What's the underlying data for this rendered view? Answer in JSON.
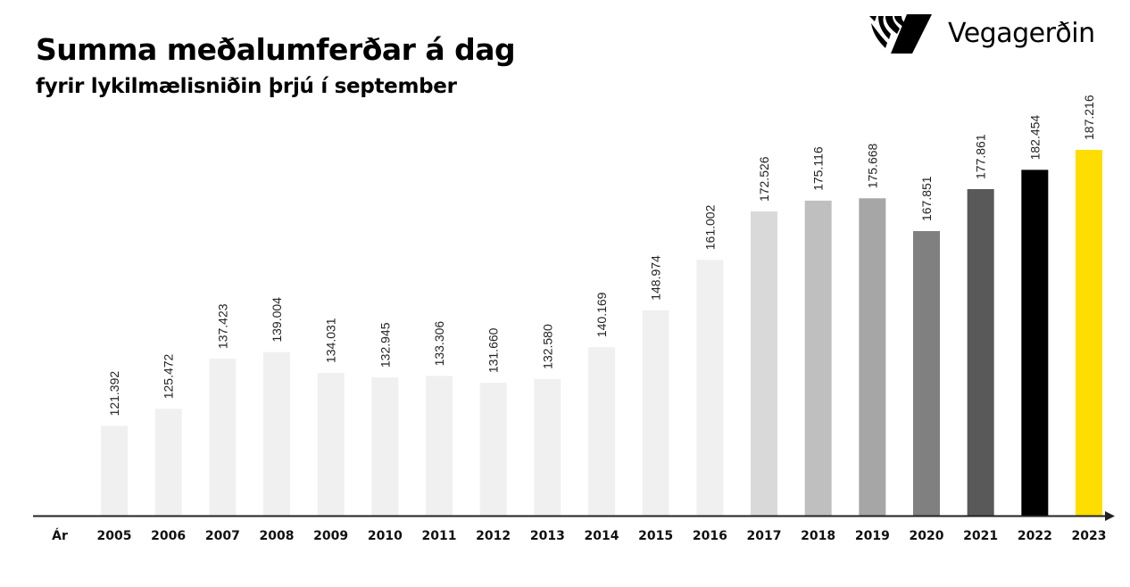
{
  "header": {
    "title": "Summa meðalumferðar á dag",
    "subtitle": "fyrir lykilmælisniðin þrjú í september",
    "logo_text": "Vegagerðin"
  },
  "chart_data": {
    "type": "bar",
    "title": "Summa meðalumferðar á dag",
    "subtitle": "fyrir lykilmælisniðin þrjú í september",
    "xlabel": "Ár",
    "ylabel": "",
    "ylim": [
      100000,
      187216
    ],
    "grid": false,
    "categories": [
      "2005",
      "2006",
      "2007",
      "2008",
      "2009",
      "2010",
      "2011",
      "2012",
      "2013",
      "2014",
      "2015",
      "2016",
      "2017",
      "2018",
      "2019",
      "2020",
      "2021",
      "2022",
      "2023"
    ],
    "values": [
      121392,
      125472,
      137423,
      139004,
      134031,
      132945,
      133306,
      131660,
      132580,
      140169,
      148974,
      161002,
      172526,
      175116,
      175668,
      167851,
      177861,
      182454,
      187216
    ],
    "data_labels": [
      "121.392",
      "125.472",
      "137.423",
      "139.004",
      "134.031",
      "132.945",
      "133.306",
      "131.660",
      "132.580",
      "140.169",
      "148.974",
      "161.002",
      "172.526",
      "175.116",
      "175.668",
      "167.851",
      "177.861",
      "182.454",
      "187.216"
    ],
    "colors": [
      "#f0f0f0",
      "#f0f0f0",
      "#f0f0f0",
      "#f0f0f0",
      "#f0f0f0",
      "#f0f0f0",
      "#f0f0f0",
      "#f0f0f0",
      "#f0f0f0",
      "#f0f0f0",
      "#f0f0f0",
      "#f0f0f0",
      "#d9d9d9",
      "#bfbfbf",
      "#a6a6a6",
      "#808080",
      "#595959",
      "#000000",
      "#ffdd00"
    ]
  }
}
